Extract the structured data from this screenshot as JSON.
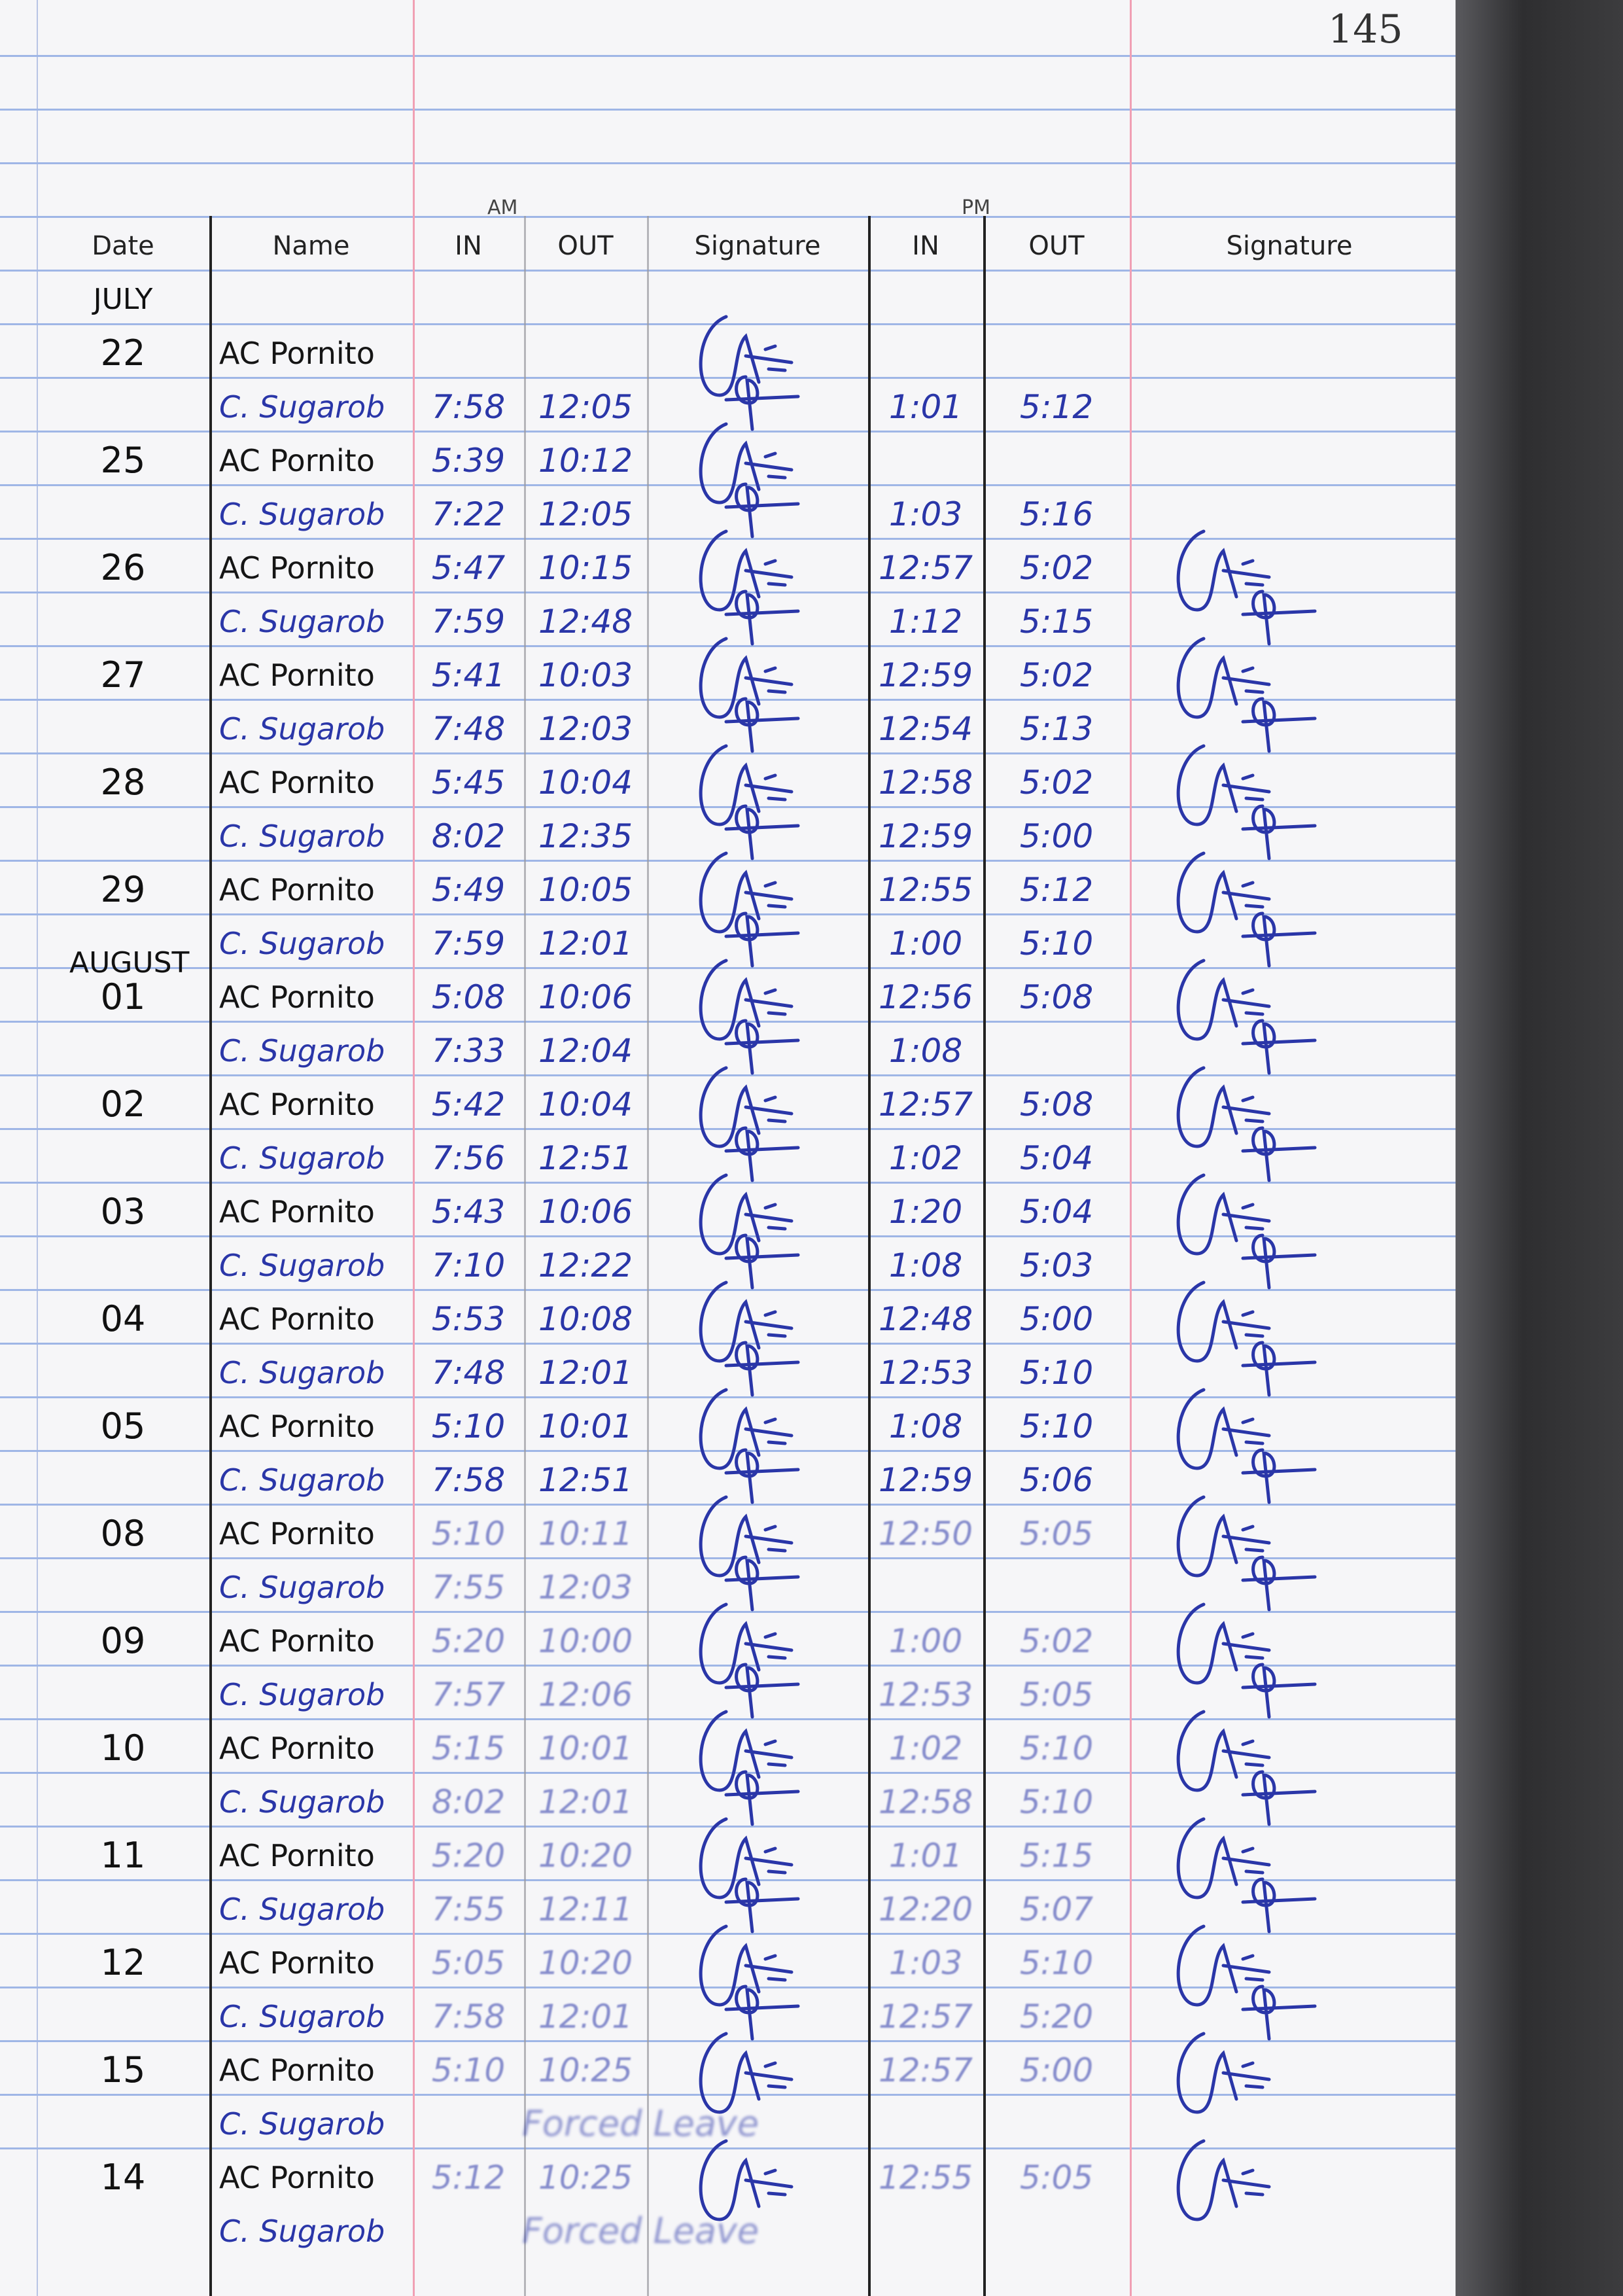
{
  "page_number": "145",
  "header": {
    "am_label": "AM",
    "pm_label": "PM",
    "columns": [
      "Date",
      "Name",
      "IN",
      "OUT",
      "Signature",
      "IN",
      "OUT",
      "Signature"
    ]
  },
  "month_labels": {
    "first": "JULY",
    "second": "AUGUST"
  },
  "ink_colors": {
    "blue": "#2a36a8",
    "black": "#151515"
  },
  "entries": [
    {
      "date": "22",
      "rows": [
        {
          "name": "AC Pornito",
          "am_in": "",
          "am_out": "",
          "pm_in": "",
          "pm_out": ""
        },
        {
          "name": "C. Sugarob",
          "am_in": "7:58",
          "am_out": "12:05",
          "pm_in": "1:01",
          "pm_out": "5:12"
        }
      ]
    },
    {
      "date": "25",
      "rows": [
        {
          "name": "AC Pornito",
          "am_in": "5:39",
          "am_out": "10:12",
          "pm_in": "",
          "pm_out": ""
        },
        {
          "name": "C. Sugarob",
          "am_in": "7:22",
          "am_out": "12:05",
          "pm_in": "1:03",
          "pm_out": "5:16"
        }
      ]
    },
    {
      "date": "26",
      "rows": [
        {
          "name": "AC Pornito",
          "am_in": "5:47",
          "am_out": "10:15",
          "pm_in": "12:57",
          "pm_out": "5:02"
        },
        {
          "name": "C. Sugarob",
          "am_in": "7:59",
          "am_out": "12:48",
          "pm_in": "1:12",
          "pm_out": "5:15"
        }
      ]
    },
    {
      "date": "27",
      "rows": [
        {
          "name": "AC Pornito",
          "am_in": "5:41",
          "am_out": "10:03",
          "pm_in": "12:59",
          "pm_out": "5:02"
        },
        {
          "name": "C. Sugarob",
          "am_in": "7:48",
          "am_out": "12:03",
          "pm_in": "12:54",
          "pm_out": "5:13"
        }
      ]
    },
    {
      "date": "28",
      "rows": [
        {
          "name": "AC Pornito",
          "am_in": "5:45",
          "am_out": "10:04",
          "pm_in": "12:58",
          "pm_out": "5:02"
        },
        {
          "name": "C. Sugarob",
          "am_in": "8:02",
          "am_out": "12:35",
          "pm_in": "12:59",
          "pm_out": "5:00"
        }
      ]
    },
    {
      "date": "29",
      "rows": [
        {
          "name": "AC Pornito",
          "am_in": "5:49",
          "am_out": "10:05",
          "pm_in": "12:55",
          "pm_out": "5:12"
        },
        {
          "name": "C. Sugarob",
          "am_in": "7:59",
          "am_out": "12:01",
          "pm_in": "1:00",
          "pm_out": "5:10"
        }
      ]
    },
    {
      "date": "01",
      "rows": [
        {
          "name": "AC Pornito",
          "am_in": "5:08",
          "am_out": "10:06",
          "pm_in": "12:56",
          "pm_out": "5:08"
        },
        {
          "name": "C. Sugarob",
          "am_in": "7:33",
          "am_out": "12:04",
          "pm_in": "1:08",
          "pm_out": ""
        }
      ]
    },
    {
      "date": "02",
      "rows": [
        {
          "name": "AC Pornito",
          "am_in": "5:42",
          "am_out": "10:04",
          "pm_in": "12:57",
          "pm_out": "5:08"
        },
        {
          "name": "C. Sugarob",
          "am_in": "7:56",
          "am_out": "12:51",
          "pm_in": "1:02",
          "pm_out": "5:04"
        }
      ]
    },
    {
      "date": "03",
      "rows": [
        {
          "name": "AC Pornito",
          "am_in": "5:43",
          "am_out": "10:06",
          "pm_in": "1:20",
          "pm_out": "5:04"
        },
        {
          "name": "C. Sugarob",
          "am_in": "7:10",
          "am_out": "12:22",
          "pm_in": "1:08",
          "pm_out": "5:03"
        }
      ]
    },
    {
      "date": "04",
      "rows": [
        {
          "name": "AC Pornito",
          "am_in": "5:53",
          "am_out": "10:08",
          "pm_in": "12:48",
          "pm_out": "5:00"
        },
        {
          "name": "C. Sugarob",
          "am_in": "7:48",
          "am_out": "12:01",
          "pm_in": "12:53",
          "pm_out": "5:10"
        }
      ]
    },
    {
      "date": "05",
      "rows": [
        {
          "name": "AC Pornito",
          "am_in": "5:10",
          "am_out": "10:01",
          "pm_in": "1:08",
          "pm_out": "5:10"
        },
        {
          "name": "C. Sugarob",
          "am_in": "7:58",
          "am_out": "12:51",
          "pm_in": "12:59",
          "pm_out": "5:06"
        }
      ]
    },
    {
      "date": "08",
      "rows": [
        {
          "name": "AC Pornito",
          "am_in": "5:10",
          "am_out": "10:11",
          "pm_in": "12:50",
          "pm_out": "5:05"
        },
        {
          "name": "C. Sugarob",
          "am_in": "7:55",
          "am_out": "12:03",
          "pm_in": "",
          "pm_out": ""
        }
      ]
    },
    {
      "date": "09",
      "rows": [
        {
          "name": "AC Pornito",
          "am_in": "5:20",
          "am_out": "10:00",
          "pm_in": "1:00",
          "pm_out": "5:02"
        },
        {
          "name": "C. Sugarob",
          "am_in": "7:57",
          "am_out": "12:06",
          "pm_in": "12:53",
          "pm_out": "5:05"
        }
      ]
    },
    {
      "date": "10",
      "rows": [
        {
          "name": "AC Pornito",
          "am_in": "5:15",
          "am_out": "10:01",
          "pm_in": "1:02",
          "pm_out": "5:10"
        },
        {
          "name": "C. Sugarob",
          "am_in": "8:02",
          "am_out": "12:01",
          "pm_in": "12:58",
          "pm_out": "5:10"
        }
      ]
    },
    {
      "date": "11",
      "rows": [
        {
          "name": "AC Pornito",
          "am_in": "5:20",
          "am_out": "10:20",
          "pm_in": "1:01",
          "pm_out": "5:15"
        },
        {
          "name": "C. Sugarob",
          "am_in": "7:55",
          "am_out": "12:11",
          "pm_in": "12:20",
          "pm_out": "5:07"
        }
      ]
    },
    {
      "date": "12",
      "rows": [
        {
          "name": "AC Pornito",
          "am_in": "5:05",
          "am_out": "10:20",
          "pm_in": "1:03",
          "pm_out": "5:10"
        },
        {
          "name": "C. Sugarob",
          "am_in": "7:58",
          "am_out": "12:01",
          "pm_in": "12:57",
          "pm_out": "5:20"
        }
      ]
    },
    {
      "date": "15",
      "rows": [
        {
          "name": "AC Pornito",
          "am_in": "5:10",
          "am_out": "10:25",
          "pm_in": "12:57",
          "pm_out": "5:00"
        },
        {
          "name": "C. Sugarob",
          "leave": "Forced Leave"
        }
      ]
    },
    {
      "date": "14",
      "rows": [
        {
          "name": "AC Pornito",
          "am_in": "5:12",
          "am_out": "10:25",
          "pm_in": "12:55",
          "pm_out": "5:05"
        },
        {
          "name": "C. Sugarob",
          "leave": "Forced Leave"
        }
      ]
    }
  ]
}
